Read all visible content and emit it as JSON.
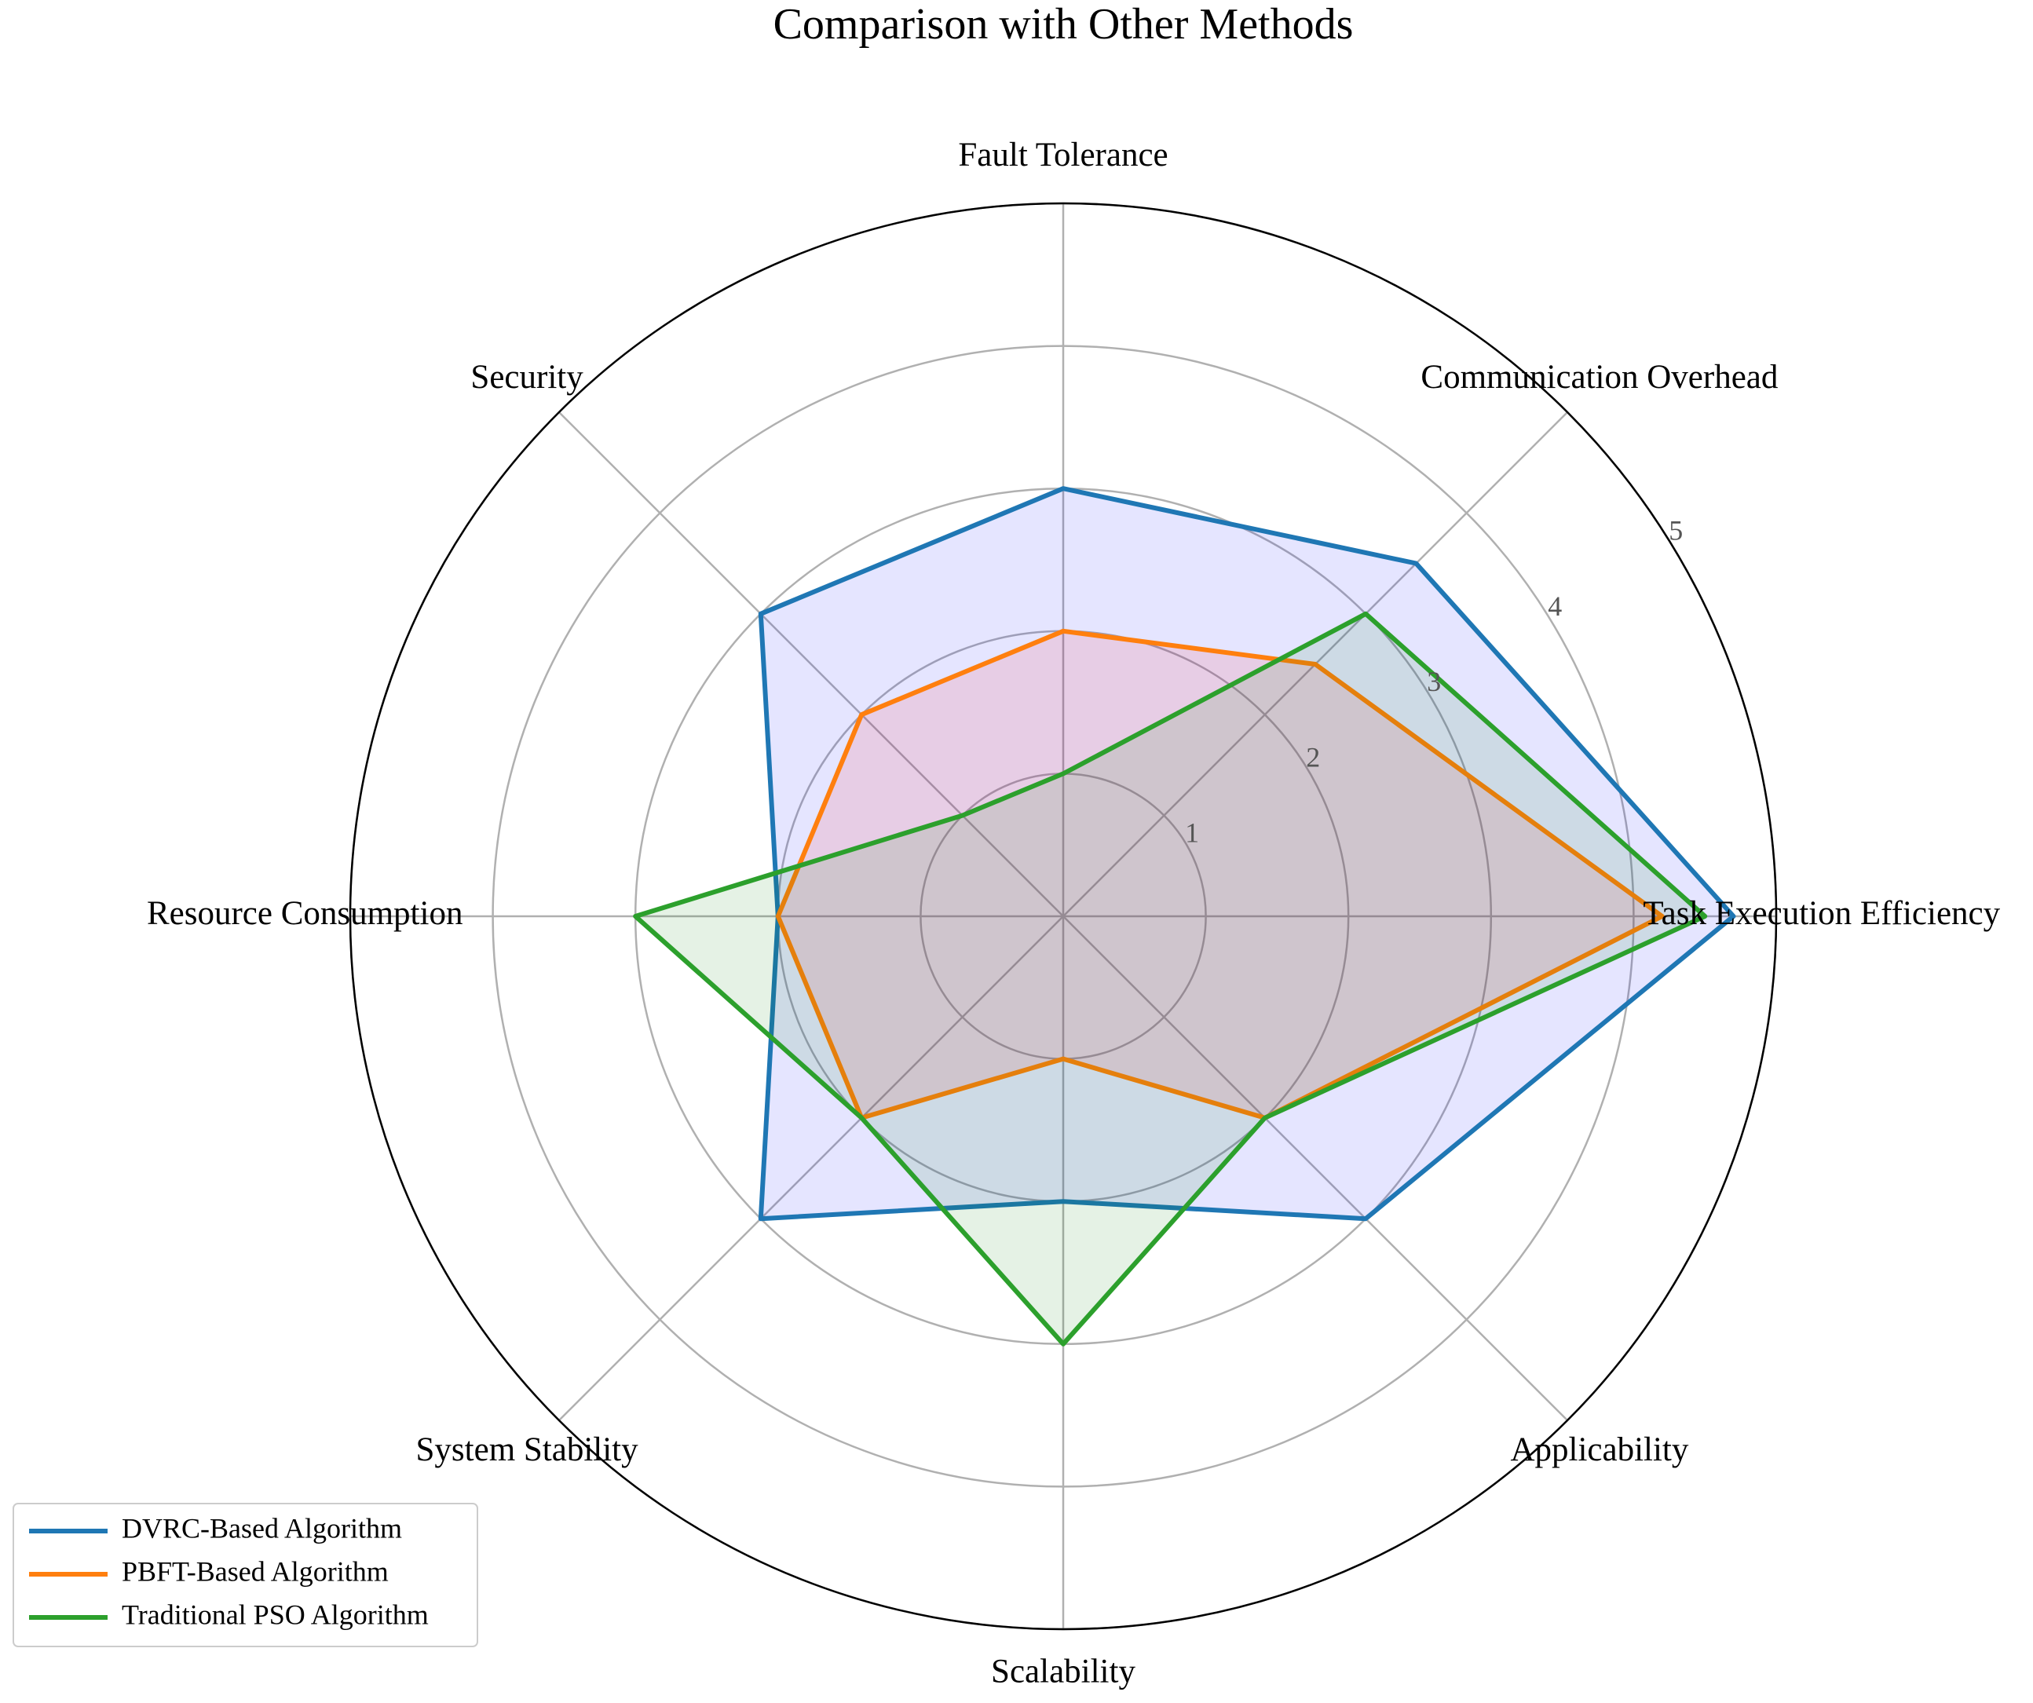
{
  "chart_data": {
    "type": "radar",
    "title": "Comparison with Other Methods",
    "categories": [
      "Task Execution Efficiency",
      "Communication Overhead",
      "Fault Tolerance",
      "Security",
      "Resource Consumption",
      "System Stability",
      "Scalability",
      "Applicability"
    ],
    "series": [
      {
        "name": "DVRC-Based Algorithm",
        "color": "#1f77b4",
        "fill_color": "#0000ff",
        "values": [
          4.7,
          3.5,
          3.0,
          3.0,
          2.0,
          3.0,
          2.0,
          3.0
        ]
      },
      {
        "name": "PBFT-Based Algorithm",
        "color": "#ff7f0e",
        "fill_color": "#ff0000",
        "values": [
          4.2,
          2.5,
          2.0,
          2.0,
          2.0,
          2.0,
          1.0,
          2.0
        ]
      },
      {
        "name": "Traditional PSO Algorithm",
        "color": "#2ca02c",
        "fill_color": "#008000",
        "values": [
          4.5,
          3.0,
          1.0,
          1.0,
          3.0,
          2.0,
          3.0,
          2.0
        ]
      }
    ],
    "ylim": [
      0,
      5
    ],
    "yticks": [
      1,
      2,
      3,
      4,
      5
    ],
    "grid": true,
    "legend": "lower left"
  }
}
